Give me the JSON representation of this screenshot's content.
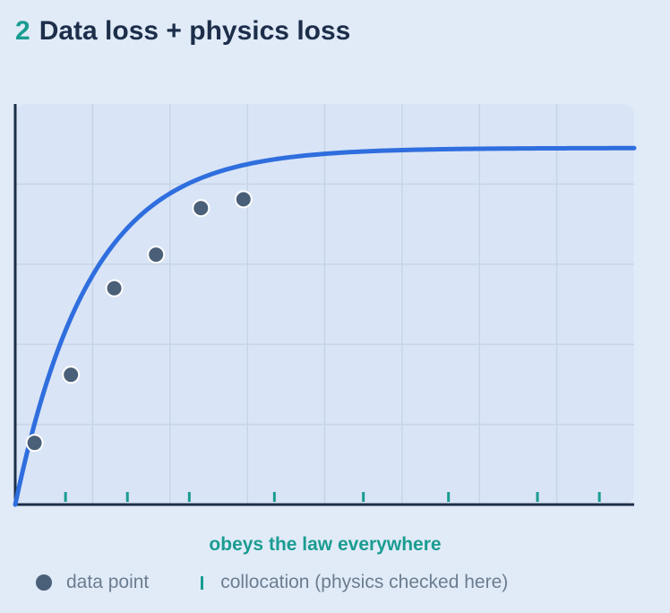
{
  "header": {
    "number": "2",
    "title": "Data loss + physics loss"
  },
  "caption": "obeys the law everywhere",
  "legend": {
    "data_point_label": "data point",
    "collocation_label": "collocation (physics checked here)"
  },
  "colors": {
    "curve": "#2f6ede",
    "data_point": "#4a5f78",
    "collocation": "#1a9c91",
    "axis": "#1c2e4a",
    "grid": "#c6d6e6",
    "plot_bg": "#d9e4f6"
  },
  "chart_data": {
    "type": "scatter",
    "xlim": [
      0,
      8
    ],
    "ylim": [
      0,
      5
    ],
    "grid": true,
    "curve": {
      "form": "saturating",
      "asymptote": 4.45,
      "rate": 1.03
    },
    "data_points": [
      {
        "x": 0.25,
        "y": 0.77
      },
      {
        "x": 0.72,
        "y": 1.62
      },
      {
        "x": 1.28,
        "y": 2.7
      },
      {
        "x": 1.82,
        "y": 3.12
      },
      {
        "x": 2.4,
        "y": 3.7
      },
      {
        "x": 2.95,
        "y": 3.81
      }
    ],
    "collocation_x": [
      0.65,
      1.45,
      2.25,
      3.35,
      4.5,
      5.6,
      6.75,
      7.55
    ]
  }
}
